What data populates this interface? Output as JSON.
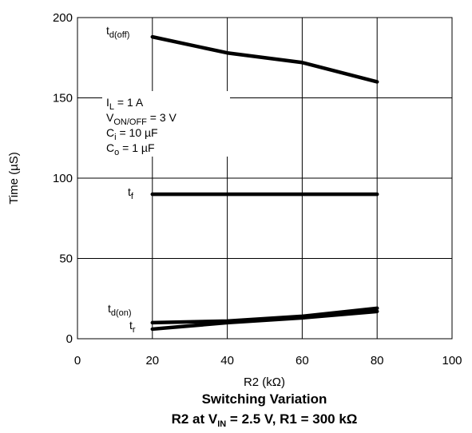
{
  "chart_data": {
    "type": "line",
    "xlabel": "R2 (kΩ)",
    "ylabel": "Time (µS)",
    "title": "Switching Variation",
    "subtitle": {
      "prefix": "R2 at V",
      "sub": "IN",
      "rest": " = 2.5 V, R1 = 300 kΩ"
    },
    "xlim": [
      0,
      100
    ],
    "ylim": [
      0,
      200
    ],
    "x_ticks": [
      "0",
      "20",
      "40",
      "60",
      "80",
      "100"
    ],
    "y_ticks": [
      "0",
      "50",
      "100",
      "150",
      "200"
    ],
    "grid": true,
    "series": [
      {
        "name": {
          "main": "t",
          "sub": "d(off)"
        },
        "x": [
          20,
          40,
          60,
          80
        ],
        "y": [
          188,
          178,
          172,
          160
        ]
      },
      {
        "name": {
          "main": "t",
          "sub": "f"
        },
        "x": [
          20,
          40,
          60,
          80
        ],
        "y": [
          90,
          90,
          90,
          90
        ]
      },
      {
        "name": {
          "main": "t",
          "sub": "d(on)"
        },
        "x": [
          20,
          40,
          60,
          80
        ],
        "y": [
          10,
          11,
          14,
          19
        ]
      },
      {
        "name": {
          "main": "t",
          "sub": "r"
        },
        "x": [
          20,
          40,
          60,
          80
        ],
        "y": [
          6,
          10,
          13,
          17
        ]
      }
    ],
    "conditions": [
      {
        "main": "I",
        "sub": "L",
        "rest": " = 1 A"
      },
      {
        "main": "V",
        "sub": "ON/OFF",
        "rest": " = 3 V"
      },
      {
        "main": "C",
        "sub": "i",
        "rest": " = 10 µF"
      },
      {
        "main": "C",
        "sub": "o",
        "rest": " = 1 µF"
      }
    ]
  }
}
